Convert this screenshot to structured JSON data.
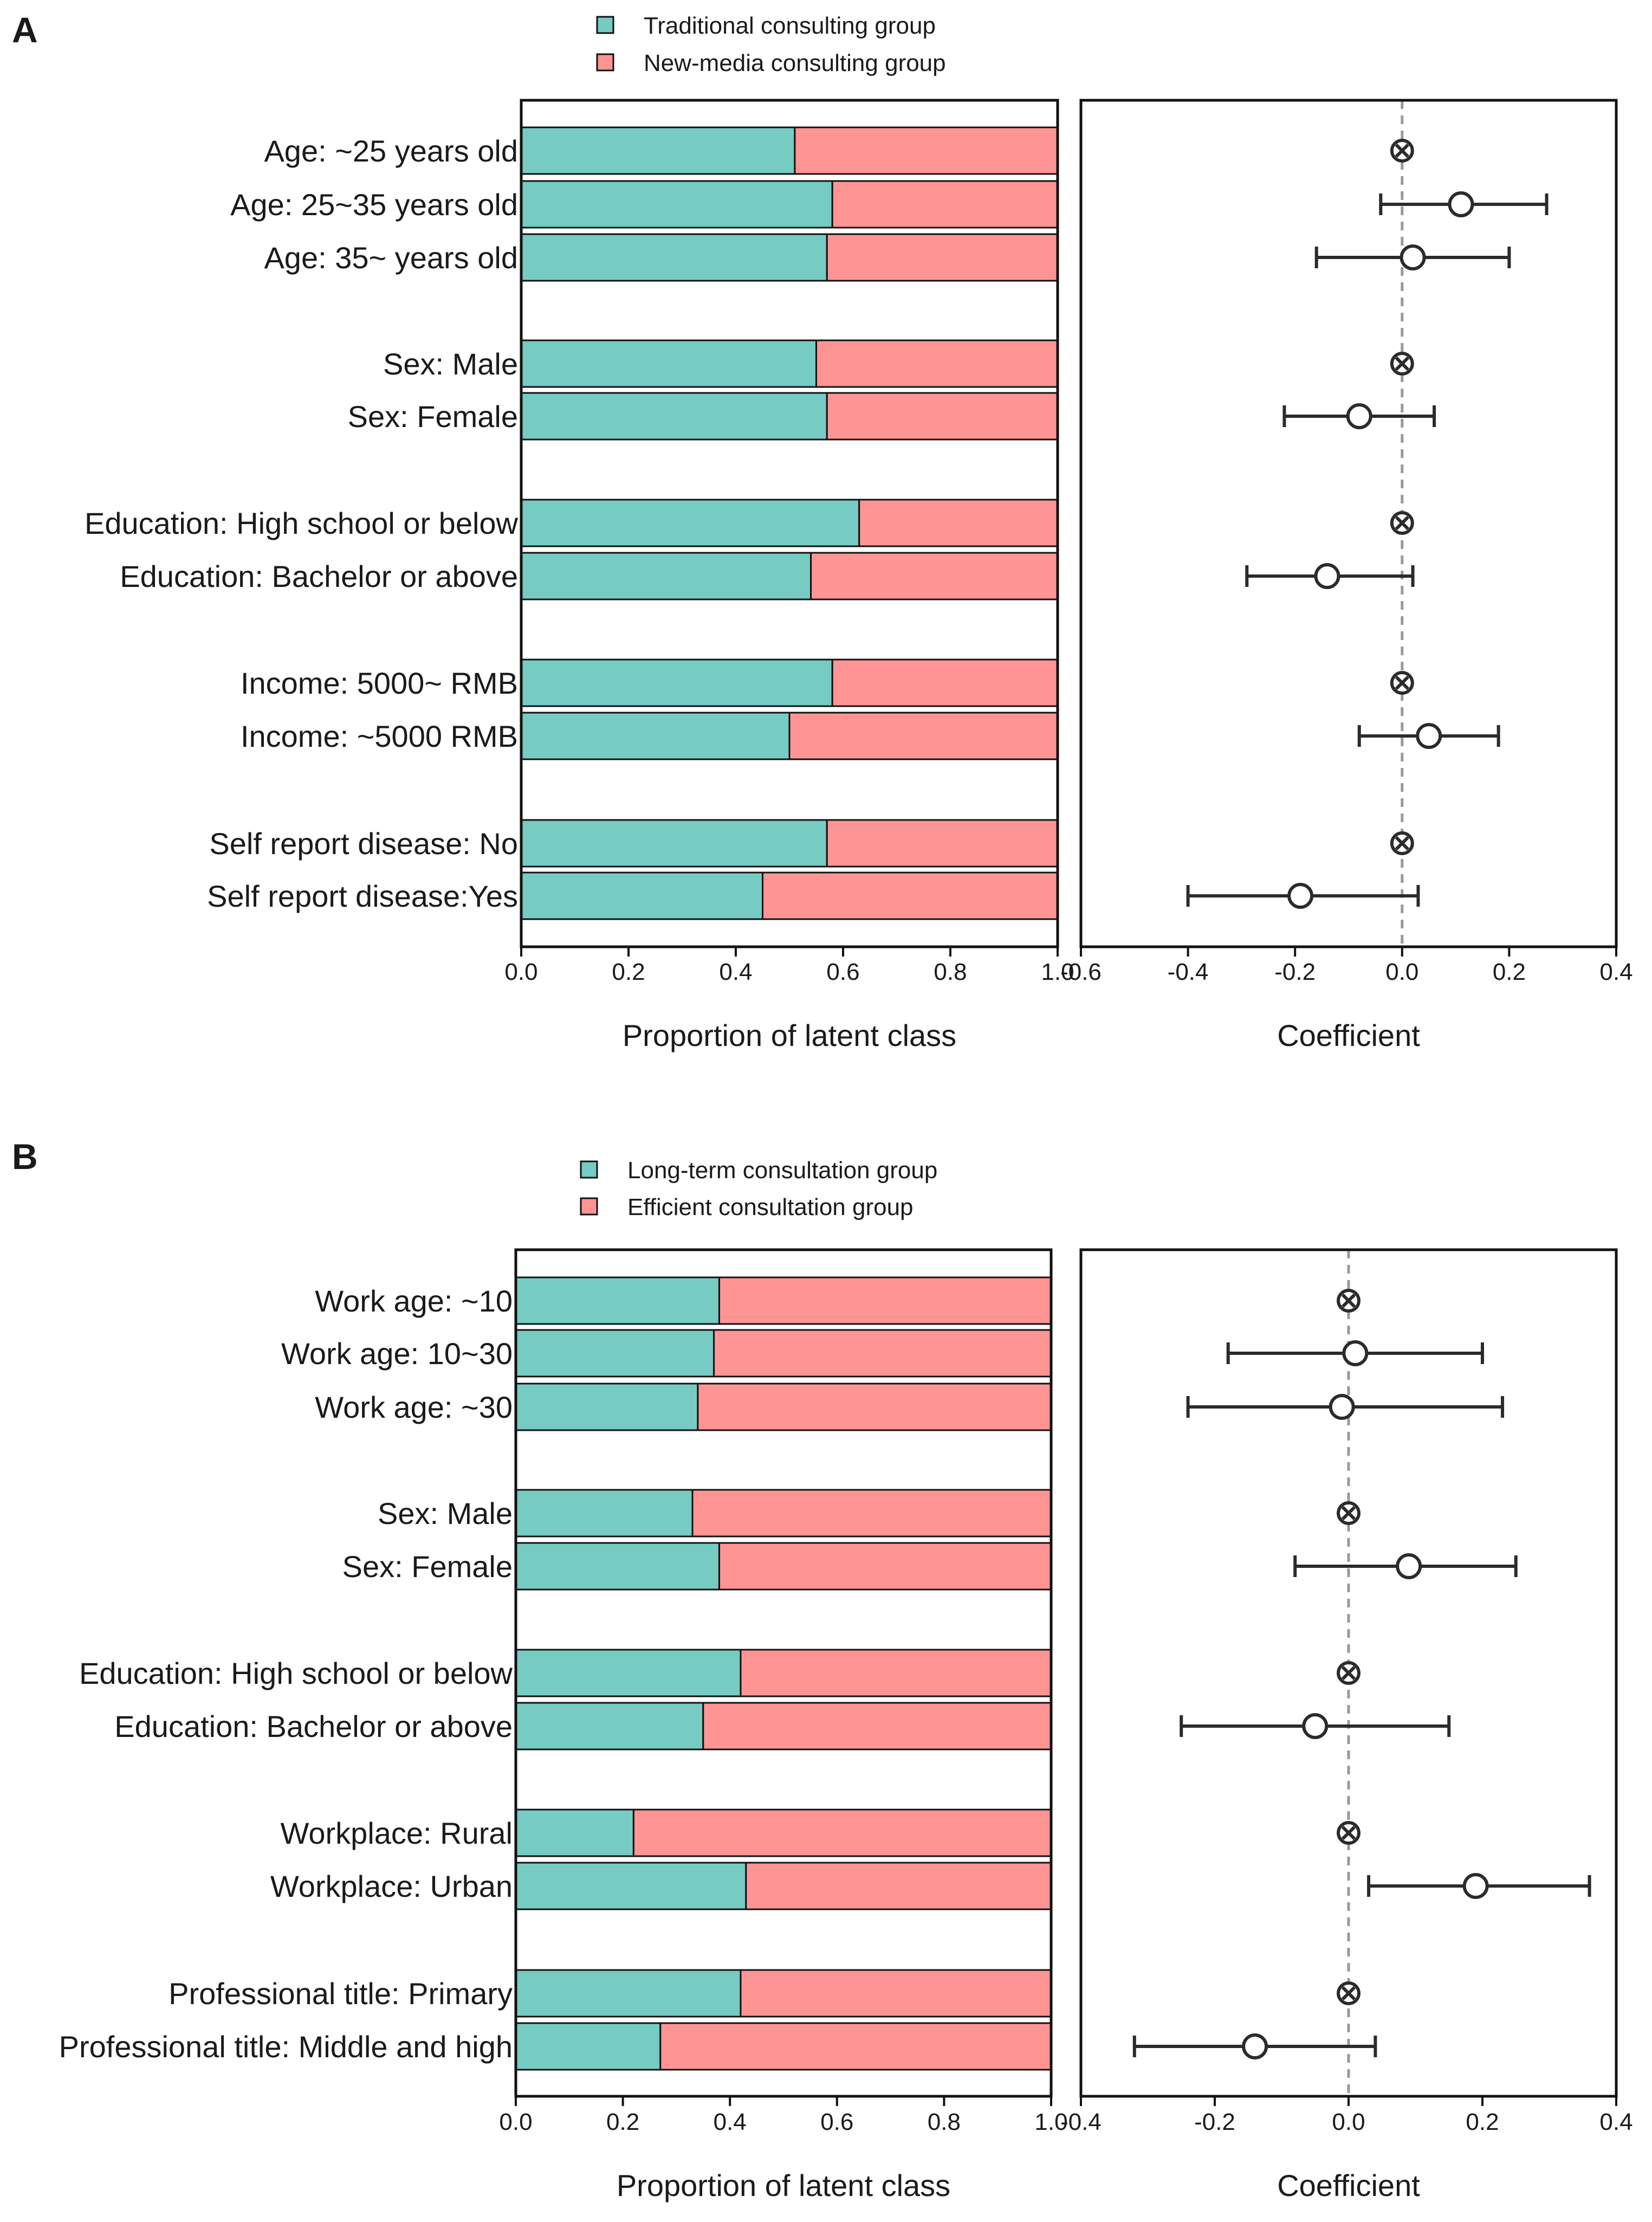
{
  "colors": {
    "class1": "#76CBC3",
    "class2": "#FE9493",
    "frame": "#111111",
    "marker": "#2b2b2b",
    "zero_line": "#999999"
  },
  "chart_data": [
    {
      "type": "bar",
      "panel": "A",
      "legend": [
        "Traditional consulting group",
        "New-media consulting group"
      ],
      "xlabel": "Proportion of latent class",
      "xlim": [
        0,
        1
      ],
      "xticks": [
        "0.0",
        "0.2",
        "0.4",
        "0.6",
        "0.8",
        "1.0"
      ],
      "groups": [
        3,
        2,
        2,
        2,
        2
      ],
      "categories": [
        "Age: ~25 years old",
        "Age: 25~35 years old",
        "Age: 35~ years old",
        "Sex: Male",
        "Sex: Female",
        "Education: High school or below",
        "Education: Bachelor or above",
        "Income: 5000~ RMB",
        "Income: ~5000 RMB",
        "Self report disease: No",
        "Self report disease:Yes"
      ],
      "series": [
        {
          "name": "Traditional consulting group",
          "values": [
            0.51,
            0.58,
            0.57,
            0.55,
            0.57,
            0.63,
            0.54,
            0.58,
            0.5,
            0.57,
            0.45
          ]
        },
        {
          "name": "New-media consulting group",
          "values": [
            0.49,
            0.42,
            0.43,
            0.45,
            0.43,
            0.37,
            0.46,
            0.42,
            0.5,
            0.43,
            0.55
          ]
        }
      ],
      "forest": {
        "xlabel": "Coefficient",
        "xlim": [
          -0.6,
          0.4
        ],
        "xticks": [
          "-0.6",
          "-0.4",
          "-0.2",
          "0.0",
          "0.2",
          "0.4"
        ],
        "points": [
          {
            "ref": true,
            "est": 0,
            "lo": 0,
            "hi": 0
          },
          {
            "ref": false,
            "est": 0.11,
            "lo": -0.04,
            "hi": 0.27
          },
          {
            "ref": false,
            "est": 0.02,
            "lo": -0.16,
            "hi": 0.2
          },
          {
            "ref": true,
            "est": 0,
            "lo": 0,
            "hi": 0
          },
          {
            "ref": false,
            "est": -0.08,
            "lo": -0.22,
            "hi": 0.06
          },
          {
            "ref": true,
            "est": 0,
            "lo": 0,
            "hi": 0
          },
          {
            "ref": false,
            "est": -0.14,
            "lo": -0.29,
            "hi": 0.02
          },
          {
            "ref": true,
            "est": 0,
            "lo": 0,
            "hi": 0
          },
          {
            "ref": false,
            "est": 0.05,
            "lo": -0.08,
            "hi": 0.18
          },
          {
            "ref": true,
            "est": 0,
            "lo": 0,
            "hi": 0
          },
          {
            "ref": false,
            "est": -0.19,
            "lo": -0.4,
            "hi": 0.03
          }
        ]
      }
    },
    {
      "type": "bar",
      "panel": "B",
      "legend": [
        "Long-term consultation group",
        "Efficient consultation group"
      ],
      "xlabel": "Proportion of latent class",
      "xlim": [
        0,
        1
      ],
      "xticks": [
        "0.0",
        "0.2",
        "0.4",
        "0.6",
        "0.8",
        "1.0"
      ],
      "groups": [
        3,
        2,
        2,
        2,
        2
      ],
      "categories": [
        "Work age: ~10",
        "Work age: 10~30",
        "Work age: ~30",
        "Sex: Male",
        "Sex: Female",
        "Education: High school or below",
        "Education: Bachelor or above",
        "Workplace: Rural",
        "Workplace: Urban",
        "Professional title: Primary",
        "Professional title: Middle and high"
      ],
      "series": [
        {
          "name": "Long-term consultation group",
          "values": [
            0.38,
            0.37,
            0.34,
            0.33,
            0.38,
            0.42,
            0.35,
            0.22,
            0.43,
            0.42,
            0.27
          ]
        },
        {
          "name": "Efficient consultation group",
          "values": [
            0.62,
            0.63,
            0.66,
            0.67,
            0.62,
            0.58,
            0.65,
            0.78,
            0.57,
            0.58,
            0.73
          ]
        }
      ],
      "forest": {
        "xlabel": "Coefficient",
        "xlim": [
          -0.4,
          0.4
        ],
        "xticks": [
          "-0.4",
          "-0.2",
          "0.0",
          "0.2",
          "0.4"
        ],
        "points": [
          {
            "ref": true,
            "est": 0,
            "lo": 0,
            "hi": 0
          },
          {
            "ref": false,
            "est": 0.01,
            "lo": -0.18,
            "hi": 0.2
          },
          {
            "ref": false,
            "est": -0.01,
            "lo": -0.24,
            "hi": 0.23
          },
          {
            "ref": true,
            "est": 0,
            "lo": 0,
            "hi": 0
          },
          {
            "ref": false,
            "est": 0.09,
            "lo": -0.08,
            "hi": 0.25
          },
          {
            "ref": true,
            "est": 0,
            "lo": 0,
            "hi": 0
          },
          {
            "ref": false,
            "est": -0.05,
            "lo": -0.25,
            "hi": 0.15
          },
          {
            "ref": true,
            "est": 0,
            "lo": 0,
            "hi": 0
          },
          {
            "ref": false,
            "est": 0.19,
            "lo": 0.03,
            "hi": 0.36
          },
          {
            "ref": true,
            "est": 0,
            "lo": 0,
            "hi": 0
          },
          {
            "ref": false,
            "est": -0.14,
            "lo": -0.32,
            "hi": 0.04
          }
        ]
      }
    }
  ]
}
